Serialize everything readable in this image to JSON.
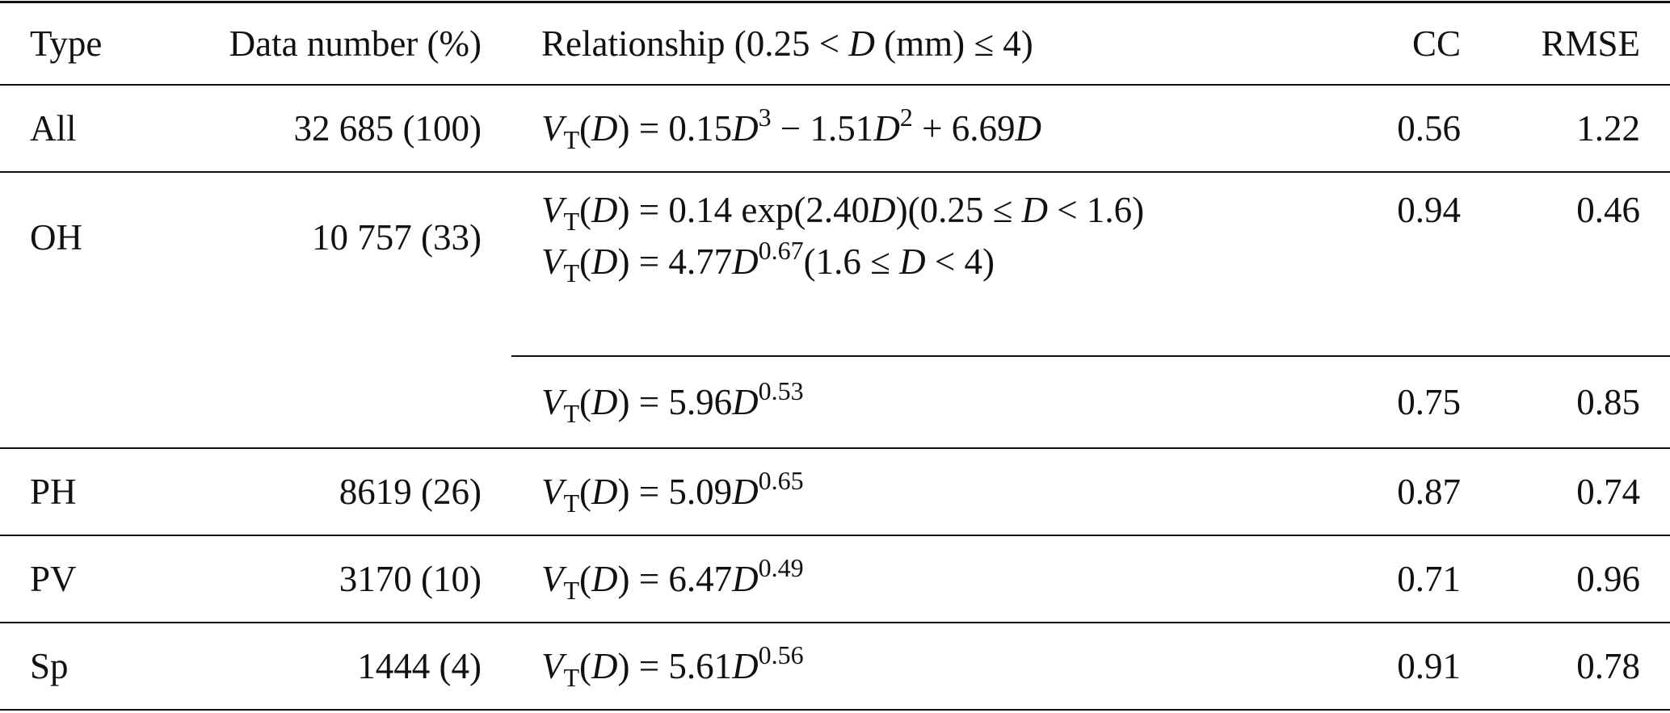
{
  "table": {
    "header": [
      "Type",
      "Data number (%)",
      "Relationship (0.25 < D (mm) ≤ 4)",
      "CC",
      "RMSE"
    ],
    "rows": [
      {
        "type": "All",
        "data_number": "32 685 (100)",
        "fits": [
          {
            "relationship": [
              [
                "V",
                {
                  "sub": "T"
                },
                "(D) = 0.15D",
                {
                  "sup": "3"
                },
                " − 1.51D",
                {
                  "sup": "2"
                },
                " + 6.69D"
              ]
            ],
            "cc": "0.56",
            "rmse": "1.22"
          }
        ]
      },
      {
        "type": "OH",
        "data_number": "10 757 (33)",
        "fits": [
          {
            "relationship": [
              [
                "V",
                {
                  "sub": "T"
                },
                "(D) = 0.14 exp(2.40D)(0.25 ≤ D < 1.6)"
              ],
              [
                "V",
                {
                  "sub": "T"
                },
                "(D) = 4.77D",
                {
                  "sup": "0.67"
                },
                "(1.6 ≤ D < 4)"
              ]
            ],
            "cc": "0.94",
            "rmse": "0.46"
          },
          {
            "relationship": [
              [
                "V",
                {
                  "sub": "T"
                },
                "(D) = 5.96D",
                {
                  "sup": "0.53"
                }
              ]
            ],
            "cc": "0.75",
            "rmse": "0.85"
          }
        ]
      },
      {
        "type": "PH",
        "data_number": "8619 (26)",
        "fits": [
          {
            "relationship": [
              [
                "V",
                {
                  "sub": "T"
                },
                "(D) = 5.09D",
                {
                  "sup": "0.65"
                }
              ]
            ],
            "cc": "0.87",
            "rmse": "0.74"
          }
        ]
      },
      {
        "type": "PV",
        "data_number": "3170 (10)",
        "fits": [
          {
            "relationship": [
              [
                "V",
                {
                  "sub": "T"
                },
                "(D) = 6.47D",
                {
                  "sup": "0.49"
                }
              ]
            ],
            "cc": "0.71",
            "rmse": "0.96"
          }
        ]
      },
      {
        "type": "Sp",
        "data_number": "1444 (4)",
        "fits": [
          {
            "relationship": [
              [
                "V",
                {
                  "sub": "T"
                },
                "(D) = 5.61D",
                {
                  "sup": "0.56"
                }
              ]
            ],
            "cc": "0.91",
            "rmse": "0.78"
          }
        ]
      }
    ]
  }
}
